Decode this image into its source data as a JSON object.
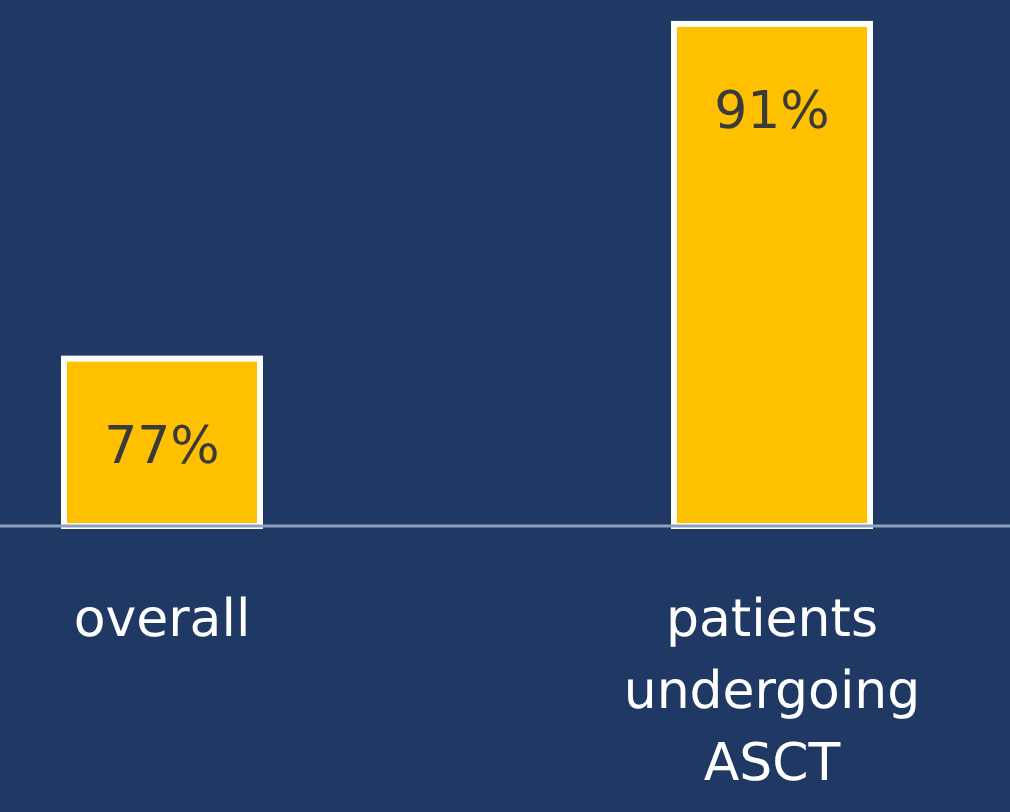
{
  "chart_data": {
    "type": "bar",
    "categories": [
      "overall",
      "patients undergoing ASCT"
    ],
    "values": [
      77,
      91
    ],
    "value_labels": [
      "77%",
      "91%"
    ],
    "color": "#ffc000",
    "ylim": [
      70,
      92
    ]
  }
}
